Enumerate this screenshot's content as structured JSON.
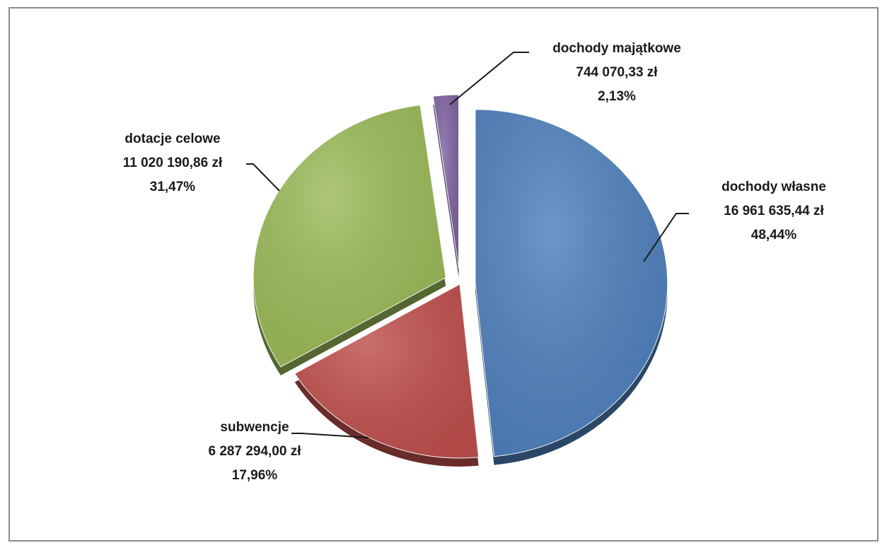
{
  "chart_data": {
    "type": "pie",
    "title": "",
    "unit": "zł",
    "slices": [
      {
        "name": "dochody własne",
        "value_label": "16 961 635,44 zł",
        "percent_label": "48,44%",
        "value": 16961635.44,
        "percent": 48.44,
        "color": "#4F81BD",
        "exploded": true
      },
      {
        "name": "subwencje",
        "value_label": "6 287 294,00 zł",
        "percent_label": "17,96%",
        "value": 6287294.0,
        "percent": 17.96,
        "color": "#C0504D",
        "exploded": false
      },
      {
        "name": "dotacje celowe",
        "value_label": "11 020 190,86 zł",
        "percent_label": "31,47%",
        "value": 11020190.86,
        "percent": 31.47,
        "color": "#9BBB59",
        "exploded": true
      },
      {
        "name": "dochody majątkowe",
        "value_label": "744 070,33 zł",
        "percent_label": "2,13%",
        "value": 744070.33,
        "percent": 2.13,
        "color": "#8064A2",
        "exploded": true
      }
    ],
    "legend": "none",
    "data_labels": "outside with leader lines"
  }
}
